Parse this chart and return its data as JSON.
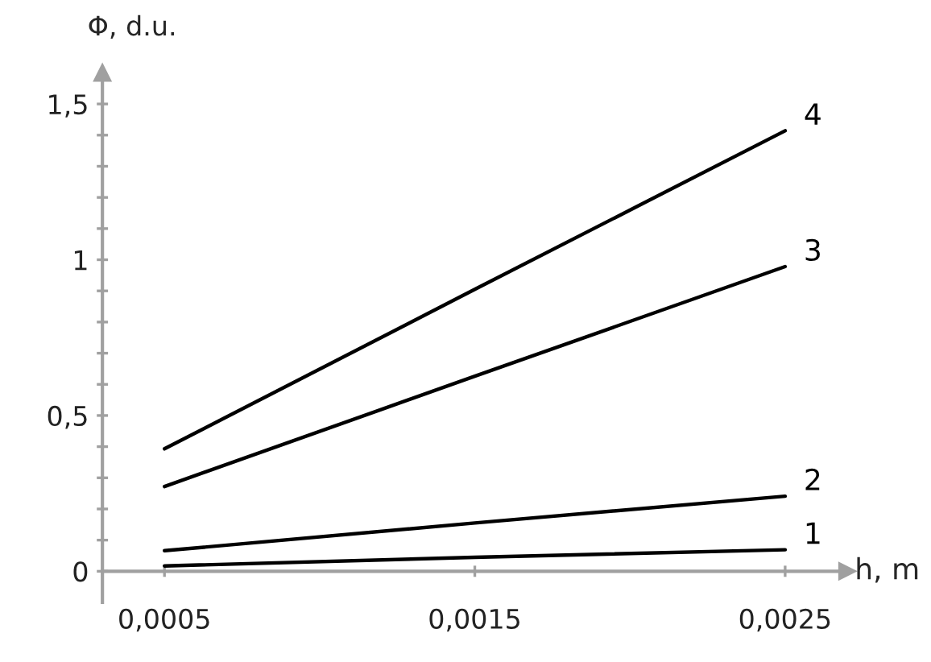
{
  "chart_data": {
    "type": "line",
    "xlabel": "h, m",
    "ylabel": "Φ, d.u.",
    "xlim": [
      0.0003,
      0.0027
    ],
    "ylim": [
      -0.1,
      1.6
    ],
    "xticks": [
      {
        "value": 0.0005,
        "label": "0,0005"
      },
      {
        "value": 0.0015,
        "label": "0,0015"
      },
      {
        "value": 0.0025,
        "label": "0,0025"
      }
    ],
    "yticks": [
      {
        "value": 0,
        "label": "0"
      },
      {
        "value": 0.1,
        "label": null
      },
      {
        "value": 0.2,
        "label": null
      },
      {
        "value": 0.3,
        "label": null
      },
      {
        "value": 0.4,
        "label": null
      },
      {
        "value": 0.5,
        "label": "0,5"
      },
      {
        "value": 0.6,
        "label": null
      },
      {
        "value": 0.7,
        "label": null
      },
      {
        "value": 0.8,
        "label": null
      },
      {
        "value": 0.9,
        "label": null
      },
      {
        "value": 1,
        "label": "1"
      },
      {
        "value": 1.1,
        "label": null
      },
      {
        "value": 1.2,
        "label": null
      },
      {
        "value": 1.3,
        "label": null
      },
      {
        "value": 1.4,
        "label": null
      },
      {
        "value": 1.5,
        "label": "1,5"
      }
    ],
    "x": [
      0.0005,
      0.0015,
      0.0025
    ],
    "grid": false,
    "marker": "none",
    "line_style": "solid",
    "series": [
      {
        "name": "1",
        "color": "#000000",
        "values": [
          0.017,
          0.045,
          0.069
        ]
      },
      {
        "name": "2",
        "color": "#000000",
        "values": [
          0.066,
          0.155,
          0.241
        ]
      },
      {
        "name": "3",
        "color": "#000000",
        "values": [
          0.272,
          0.626,
          0.978
        ]
      },
      {
        "name": "4",
        "color": "#000000",
        "values": [
          0.393,
          0.905,
          1.414
        ]
      }
    ]
  }
}
